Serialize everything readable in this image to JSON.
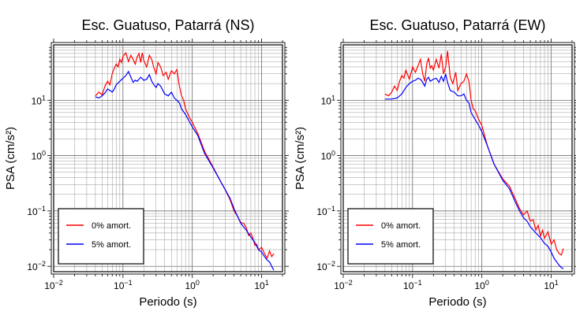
{
  "chart_data": [
    {
      "type": "line",
      "title": "Esc. Guatuso, Patarrá (NS)",
      "xlabel": "Periodo (s)",
      "ylabel": "PSA (cm/s²)",
      "xscale": "log",
      "yscale": "log",
      "xlim": [
        0.01,
        20
      ],
      "ylim": [
        0.008,
        100
      ],
      "x_ticks": [
        {
          "base": "10",
          "exp": "−2"
        },
        {
          "base": "10",
          "exp": "−1"
        },
        {
          "base": "10",
          "exp": "0"
        },
        {
          "base": "10",
          "exp": "1"
        }
      ],
      "y_ticks": [
        {
          "base": "10",
          "exp": "−2"
        },
        {
          "base": "10",
          "exp": "−1"
        },
        {
          "base": "10",
          "exp": "0"
        },
        {
          "base": "10",
          "exp": "1"
        }
      ],
      "grid": true,
      "legend_position": "bottom-left",
      "series": [
        {
          "name": "0% amort.",
          "color": "#ff0000",
          "points": [
            [
              0.04,
              12
            ],
            [
              0.045,
              14
            ],
            [
              0.05,
              12.5
            ],
            [
              0.055,
              18
            ],
            [
              0.06,
              22
            ],
            [
              0.065,
              19
            ],
            [
              0.07,
              30
            ],
            [
              0.075,
              38
            ],
            [
              0.08,
              45
            ],
            [
              0.085,
              40
            ],
            [
              0.09,
              55
            ],
            [
              0.095,
              48
            ],
            [
              0.1,
              62
            ],
            [
              0.11,
              72
            ],
            [
              0.12,
              50
            ],
            [
              0.13,
              65
            ],
            [
              0.14,
              55
            ],
            [
              0.15,
              45
            ],
            [
              0.16,
              60
            ],
            [
              0.17,
              70
            ],
            [
              0.18,
              48
            ],
            [
              0.19,
              72
            ],
            [
              0.2,
              52
            ],
            [
              0.22,
              40
            ],
            [
              0.24,
              65
            ],
            [
              0.26,
              55
            ],
            [
              0.28,
              38
            ],
            [
              0.3,
              30
            ],
            [
              0.32,
              48
            ],
            [
              0.35,
              40
            ],
            [
              0.38,
              28
            ],
            [
              0.42,
              32
            ],
            [
              0.45,
              24
            ],
            [
              0.5,
              34
            ],
            [
              0.55,
              30
            ],
            [
              0.6,
              36
            ],
            [
              0.65,
              18
            ],
            [
              0.7,
              12
            ],
            [
              0.75,
              10
            ],
            [
              0.8,
              7
            ],
            [
              0.9,
              5
            ],
            [
              1.0,
              4
            ],
            [
              1.2,
              2.5
            ],
            [
              1.5,
              1.2
            ],
            [
              2.0,
              0.62
            ],
            [
              2.5,
              0.36
            ],
            [
              3.0,
              0.24
            ],
            [
              3.5,
              0.16
            ],
            [
              4.0,
              0.1
            ],
            [
              4.5,
              0.08
            ],
            [
              5.0,
              0.062
            ],
            [
              5.5,
              0.06
            ],
            [
              6.0,
              0.05
            ],
            [
              6.5,
              0.036
            ],
            [
              7.0,
              0.04
            ],
            [
              7.5,
              0.032
            ],
            [
              8.0,
              0.024
            ],
            [
              8.5,
              0.025
            ],
            [
              9.0,
              0.02
            ],
            [
              10,
              0.022
            ],
            [
              11,
              0.017
            ],
            [
              12,
              0.014
            ],
            [
              13,
              0.019
            ],
            [
              14,
              0.015
            ],
            [
              15,
              0.017
            ]
          ]
        },
        {
          "name": "5% amort.",
          "color": "#0000ff",
          "points": [
            [
              0.04,
              11.5
            ],
            [
              0.045,
              11
            ],
            [
              0.05,
              12
            ],
            [
              0.055,
              13.5
            ],
            [
              0.06,
              16
            ],
            [
              0.065,
              15
            ],
            [
              0.07,
              14
            ],
            [
              0.075,
              16
            ],
            [
              0.08,
              19
            ],
            [
              0.09,
              22
            ],
            [
              0.1,
              25
            ],
            [
              0.11,
              28
            ],
            [
              0.12,
              33
            ],
            [
              0.13,
              26
            ],
            [
              0.14,
              21
            ],
            [
              0.15,
              23
            ],
            [
              0.16,
              22
            ],
            [
              0.17,
              24
            ],
            [
              0.18,
              26
            ],
            [
              0.2,
              23
            ],
            [
              0.22,
              24
            ],
            [
              0.24,
              29
            ],
            [
              0.26,
              22
            ],
            [
              0.28,
              19
            ],
            [
              0.3,
              17
            ],
            [
              0.32,
              20
            ],
            [
              0.35,
              18
            ],
            [
              0.4,
              13
            ],
            [
              0.45,
              12
            ],
            [
              0.5,
              14
            ],
            [
              0.55,
              11
            ],
            [
              0.6,
              10
            ],
            [
              0.65,
              9
            ],
            [
              0.7,
              7
            ],
            [
              0.8,
              5.5
            ],
            [
              0.9,
              4.2
            ],
            [
              1.0,
              3.3
            ],
            [
              1.2,
              2.3
            ],
            [
              1.5,
              1.1
            ],
            [
              2.0,
              0.6
            ],
            [
              2.5,
              0.36
            ],
            [
              3.0,
              0.24
            ],
            [
              3.5,
              0.17
            ],
            [
              4.0,
              0.11
            ],
            [
              4.5,
              0.08
            ],
            [
              5.0,
              0.06
            ],
            [
              6.0,
              0.045
            ],
            [
              7.0,
              0.034
            ],
            [
              8.0,
              0.027
            ],
            [
              9.0,
              0.02
            ],
            [
              10,
              0.018
            ],
            [
              11,
              0.015
            ],
            [
              12,
              0.013
            ],
            [
              13,
              0.012
            ],
            [
              14,
              0.01
            ],
            [
              15,
              0.0085
            ]
          ]
        }
      ]
    },
    {
      "type": "line",
      "title": "Esc. Guatuso, Patarrá (EW)",
      "xlabel": "Periodo (s)",
      "ylabel": "PSA (cm/s²)",
      "xscale": "log",
      "yscale": "log",
      "xlim": [
        0.01,
        20
      ],
      "ylim": [
        0.008,
        100
      ],
      "x_ticks": [
        {
          "base": "10",
          "exp": "−2"
        },
        {
          "base": "10",
          "exp": "−1"
        },
        {
          "base": "10",
          "exp": "0"
        },
        {
          "base": "10",
          "exp": "1"
        }
      ],
      "y_ticks": [
        {
          "base": "10",
          "exp": "−2"
        },
        {
          "base": "10",
          "exp": "−1"
        },
        {
          "base": "10",
          "exp": "0"
        },
        {
          "base": "10",
          "exp": "1"
        }
      ],
      "grid": true,
      "legend_position": "bottom-left",
      "series": [
        {
          "name": "0% amort.",
          "color": "#ff0000",
          "points": [
            [
              0.04,
              13
            ],
            [
              0.045,
              12
            ],
            [
              0.05,
              14
            ],
            [
              0.055,
              18
            ],
            [
              0.06,
              15
            ],
            [
              0.065,
              22
            ],
            [
              0.07,
              28
            ],
            [
              0.075,
              25
            ],
            [
              0.08,
              35
            ],
            [
              0.09,
              24
            ],
            [
              0.1,
              40
            ],
            [
              0.11,
              32
            ],
            [
              0.12,
              42
            ],
            [
              0.13,
              55
            ],
            [
              0.14,
              30
            ],
            [
              0.15,
              22
            ],
            [
              0.16,
              45
            ],
            [
              0.17,
              58
            ],
            [
              0.18,
              38
            ],
            [
              0.19,
              42
            ],
            [
              0.2,
              35
            ],
            [
              0.22,
              55
            ],
            [
              0.24,
              38
            ],
            [
              0.26,
              68
            ],
            [
              0.28,
              30
            ],
            [
              0.3,
              40
            ],
            [
              0.32,
              78
            ],
            [
              0.35,
              26
            ],
            [
              0.38,
              20
            ],
            [
              0.42,
              32
            ],
            [
              0.45,
              15
            ],
            [
              0.5,
              20
            ],
            [
              0.55,
              22
            ],
            [
              0.6,
              30
            ],
            [
              0.65,
              22
            ],
            [
              0.7,
              10
            ],
            [
              0.75,
              7
            ],
            [
              0.8,
              6.5
            ],
            [
              0.9,
              4.5
            ],
            [
              1.0,
              3.5
            ],
            [
              1.2,
              1.5
            ],
            [
              1.5,
              0.7
            ],
            [
              2.0,
              0.38
            ],
            [
              2.5,
              0.28
            ],
            [
              3.0,
              0.17
            ],
            [
              3.5,
              0.11
            ],
            [
              4.0,
              0.085
            ],
            [
              4.5,
              0.1
            ],
            [
              5.0,
              0.065
            ],
            [
              5.5,
              0.07
            ],
            [
              6.0,
              0.045
            ],
            [
              6.5,
              0.055
            ],
            [
              7.0,
              0.035
            ],
            [
              7.5,
              0.045
            ],
            [
              8.0,
              0.032
            ],
            [
              9.0,
              0.042
            ],
            [
              10,
              0.025
            ],
            [
              11,
              0.03
            ],
            [
              12,
              0.02
            ],
            [
              13,
              0.017
            ],
            [
              14,
              0.016
            ],
            [
              15,
              0.021
            ]
          ]
        },
        {
          "name": "5% amort.",
          "color": "#0000ff",
          "points": [
            [
              0.04,
              10.5
            ],
            [
              0.05,
              10.5
            ],
            [
              0.06,
              11
            ],
            [
              0.07,
              13
            ],
            [
              0.08,
              17
            ],
            [
              0.09,
              20
            ],
            [
              0.1,
              22
            ],
            [
              0.11,
              23
            ],
            [
              0.12,
              25
            ],
            [
              0.13,
              24
            ],
            [
              0.14,
              21
            ],
            [
              0.15,
              18
            ],
            [
              0.16,
              24
            ],
            [
              0.17,
              26
            ],
            [
              0.18,
              22
            ],
            [
              0.2,
              24
            ],
            [
              0.22,
              25
            ],
            [
              0.24,
              21
            ],
            [
              0.26,
              27
            ],
            [
              0.28,
              22
            ],
            [
              0.3,
              30
            ],
            [
              0.32,
              21
            ],
            [
              0.35,
              15
            ],
            [
              0.4,
              14
            ],
            [
              0.45,
              12
            ],
            [
              0.5,
              12
            ],
            [
              0.55,
              13
            ],
            [
              0.6,
              10
            ],
            [
              0.65,
              9
            ],
            [
              0.7,
              6
            ],
            [
              0.8,
              4.5
            ],
            [
              0.9,
              3.5
            ],
            [
              1.0,
              2.7
            ],
            [
              1.2,
              1.5
            ],
            [
              1.5,
              0.7
            ],
            [
              2.0,
              0.36
            ],
            [
              2.5,
              0.25
            ],
            [
              3.0,
              0.15
            ],
            [
              3.5,
              0.1
            ],
            [
              4.0,
              0.075
            ],
            [
              4.5,
              0.065
            ],
            [
              5.0,
              0.052
            ],
            [
              6.0,
              0.04
            ],
            [
              7.0,
              0.033
            ],
            [
              8.0,
              0.026
            ],
            [
              9.0,
              0.023
            ],
            [
              10,
              0.018
            ],
            [
              11,
              0.014
            ],
            [
              12,
              0.012
            ],
            [
              13,
              0.0105
            ],
            [
              14,
              0.0095
            ],
            [
              15,
              0.009
            ]
          ]
        }
      ]
    }
  ]
}
